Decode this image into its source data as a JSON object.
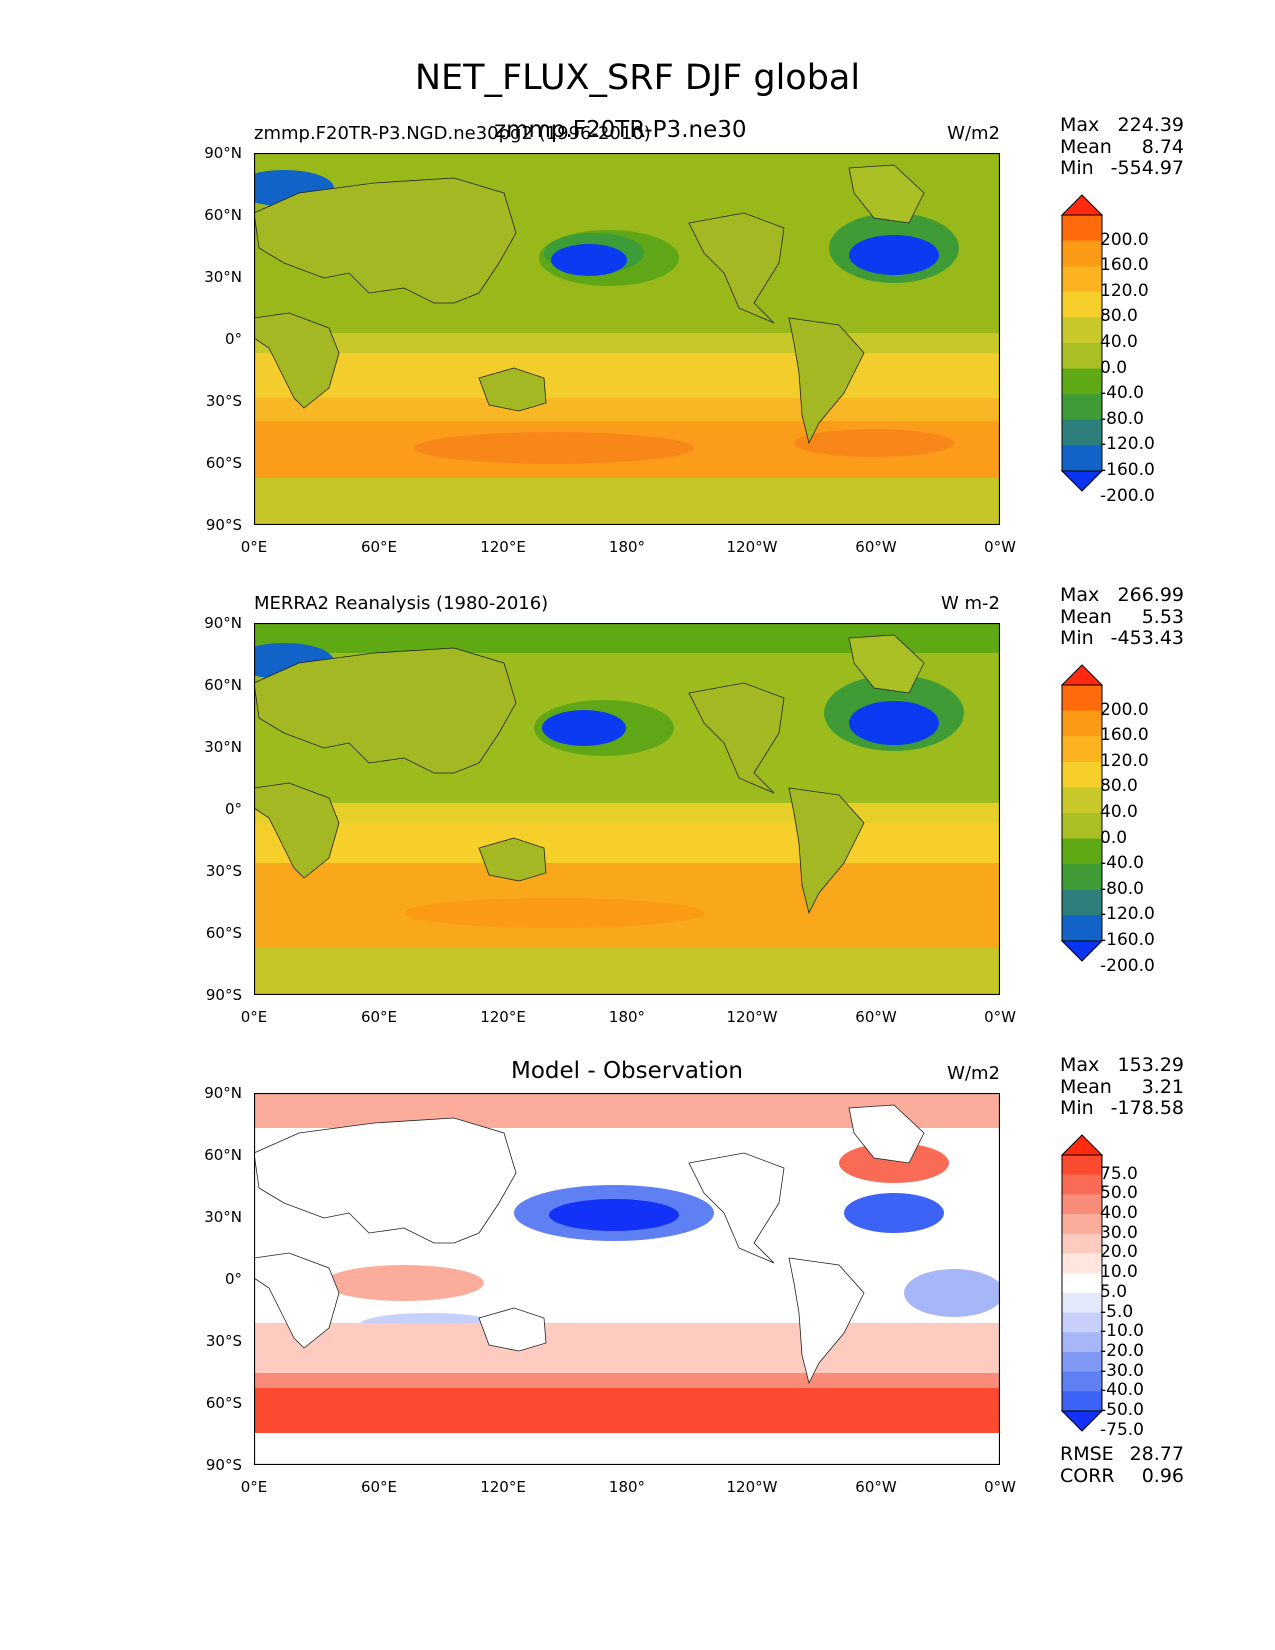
{
  "figure": {
    "title": "NET_FLUX_SRF DJF global"
  },
  "panels": [
    {
      "id": "model",
      "left_label": "zmmp.F20TR-P3.NGD.ne30pg2 (1996-2010)",
      "center_label": "zmmp.F20TR-P3.ne30",
      "units": "W/m2",
      "stats": {
        "max": "224.39",
        "mean": "8.74",
        "min": "-554.97"
      }
    },
    {
      "id": "obs",
      "left_label": "MERRA2 Reanalysis (1980-2016)",
      "center_label": "",
      "units": "W m-2",
      "stats": {
        "max": "266.99",
        "mean": "5.53",
        "min": "-453.43"
      }
    },
    {
      "id": "diff",
      "left_label": "",
      "center_label": "Model - Observation",
      "units": "W/m2",
      "stats": {
        "max": "153.29",
        "mean": "3.21",
        "min": "-178.58"
      },
      "extra_stats": {
        "rmse": "28.77",
        "corr": "0.96"
      }
    }
  ],
  "stat_labels": {
    "max": "Max",
    "mean": "Mean",
    "min": "Min",
    "rmse": "RMSE",
    "corr": "CORR"
  },
  "axes": {
    "x_ticks": [
      "0°E",
      "60°E",
      "120°E",
      "180°",
      "120°W",
      "60°W",
      "0°W"
    ],
    "y_ticks": [
      "90°N",
      "60°N",
      "30°N",
      "0°",
      "30°S",
      "60°S",
      "90°S"
    ]
  },
  "colorbars": {
    "field": {
      "labels": [
        "200.0",
        "160.0",
        "120.0",
        "80.0",
        "40.0",
        "0.0",
        "-40.0",
        "-80.0",
        "-120.0",
        "-160.0",
        "-200.0"
      ],
      "colors": [
        "#ff2a0f",
        "#ff6a0a",
        "#fb9a14",
        "#fbb31f",
        "#f6cf2a",
        "#c9c82a",
        "#a9bf23",
        "#5ea914",
        "#3e9b36",
        "#2c7f7a",
        "#1163c7",
        "#0835f4"
      ]
    },
    "diff": {
      "labels": [
        "75.0",
        "50.0",
        "40.0",
        "30.0",
        "20.0",
        "10.0",
        "5.0",
        "-5.0",
        "-10.0",
        "-20.0",
        "-30.0",
        "-40.0",
        "-50.0",
        "-75.0"
      ],
      "colors": [
        "#ff2a0f",
        "#fb4a2f",
        "#f96b55",
        "#f98c79",
        "#fbac9b",
        "#fdcbc0",
        "#ffe6df",
        "#ffffff",
        "#e3e8fb",
        "#c6d0fb",
        "#a6b6f8",
        "#8099f5",
        "#5f80f3",
        "#3c62f6",
        "#1432f7"
      ]
    }
  },
  "chart_data": [
    {
      "type": "heatmap",
      "title": "zmmp.F20TR-P3.ne30",
      "subtitle": "zmmp.F20TR-P3.NGD.ne30pg2 (1996-2010)",
      "variable": "NET_FLUX_SRF",
      "season": "DJF",
      "units": "W/m2",
      "x_ticks": [
        "0°E",
        "60°E",
        "120°E",
        "180°",
        "120°W",
        "60°W",
        "0°W"
      ],
      "y_ticks": [
        "90°N",
        "60°N",
        "30°N",
        "0°",
        "30°S",
        "60°S",
        "90°S"
      ],
      "xlim": [
        0,
        360
      ],
      "ylim": [
        -90,
        90
      ],
      "levels": [
        -200,
        -160,
        -120,
        -80,
        -40,
        0,
        40,
        80,
        120,
        160,
        200
      ],
      "max": 224.39,
      "mean": 8.74,
      "min": -554.97
    },
    {
      "type": "heatmap",
      "title": "MERRA2 Reanalysis (1980-2016)",
      "variable": "NET_FLUX_SRF",
      "season": "DJF",
      "units": "W m-2",
      "x_ticks": [
        "0°E",
        "60°E",
        "120°E",
        "180°",
        "120°W",
        "60°W",
        "0°W"
      ],
      "y_ticks": [
        "90°N",
        "60°N",
        "30°N",
        "0°",
        "30°S",
        "60°S",
        "90°S"
      ],
      "xlim": [
        0,
        360
      ],
      "ylim": [
        -90,
        90
      ],
      "levels": [
        -200,
        -160,
        -120,
        -80,
        -40,
        0,
        40,
        80,
        120,
        160,
        200
      ],
      "max": 266.99,
      "mean": 5.53,
      "min": -453.43
    },
    {
      "type": "heatmap",
      "title": "Model - Observation",
      "variable": "NET_FLUX_SRF",
      "season": "DJF",
      "units": "W/m2",
      "x_ticks": [
        "0°E",
        "60°E",
        "120°E",
        "180°",
        "120°W",
        "60°W",
        "0°W"
      ],
      "y_ticks": [
        "90°N",
        "60°N",
        "30°N",
        "0°",
        "30°S",
        "60°S",
        "90°S"
      ],
      "xlim": [
        0,
        360
      ],
      "ylim": [
        -90,
        90
      ],
      "levels": [
        -75,
        -50,
        -40,
        -30,
        -20,
        -10,
        -5,
        5,
        10,
        20,
        30,
        40,
        50,
        75
      ],
      "max": 153.29,
      "mean": 3.21,
      "min": -178.58,
      "rmse": 28.77,
      "corr": 0.96
    }
  ]
}
